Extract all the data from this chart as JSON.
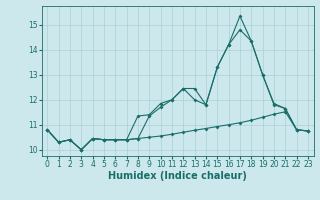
{
  "xlabel": "Humidex (Indice chaleur)",
  "bg_color": "#cce8ec",
  "grid_color": "#aad0d8",
  "line_color": "#1a6e6a",
  "xlim": [
    -0.5,
    23.5
  ],
  "ylim": [
    9.75,
    15.75
  ],
  "yticks": [
    10,
    11,
    12,
    13,
    14,
    15
  ],
  "xticks": [
    0,
    1,
    2,
    3,
    4,
    5,
    6,
    7,
    8,
    9,
    10,
    11,
    12,
    13,
    14,
    15,
    16,
    17,
    18,
    19,
    20,
    21,
    22,
    23
  ],
  "line1_y": [
    10.8,
    10.3,
    10.4,
    10.0,
    10.45,
    10.4,
    10.4,
    10.4,
    10.45,
    10.5,
    10.55,
    10.62,
    10.7,
    10.78,
    10.85,
    10.93,
    11.0,
    11.08,
    11.18,
    11.3,
    11.42,
    11.52,
    10.8,
    10.75
  ],
  "line2_y": [
    10.8,
    10.3,
    10.4,
    10.0,
    10.45,
    10.4,
    10.4,
    10.4,
    10.45,
    11.35,
    11.7,
    12.0,
    12.45,
    12.45,
    11.8,
    13.3,
    14.2,
    14.8,
    14.35,
    13.0,
    11.8,
    11.65,
    10.8,
    10.75
  ],
  "line3_y": [
    10.8,
    10.3,
    10.4,
    10.0,
    10.45,
    10.4,
    10.4,
    10.4,
    11.35,
    11.4,
    11.85,
    12.0,
    12.45,
    12.0,
    11.8,
    13.3,
    14.2,
    15.35,
    14.35,
    13.0,
    11.85,
    11.65,
    10.8,
    10.75
  ],
  "markersize": 2.0,
  "linewidth": 0.8,
  "tick_fontsize": 5.5,
  "xlabel_fontsize": 7.0
}
